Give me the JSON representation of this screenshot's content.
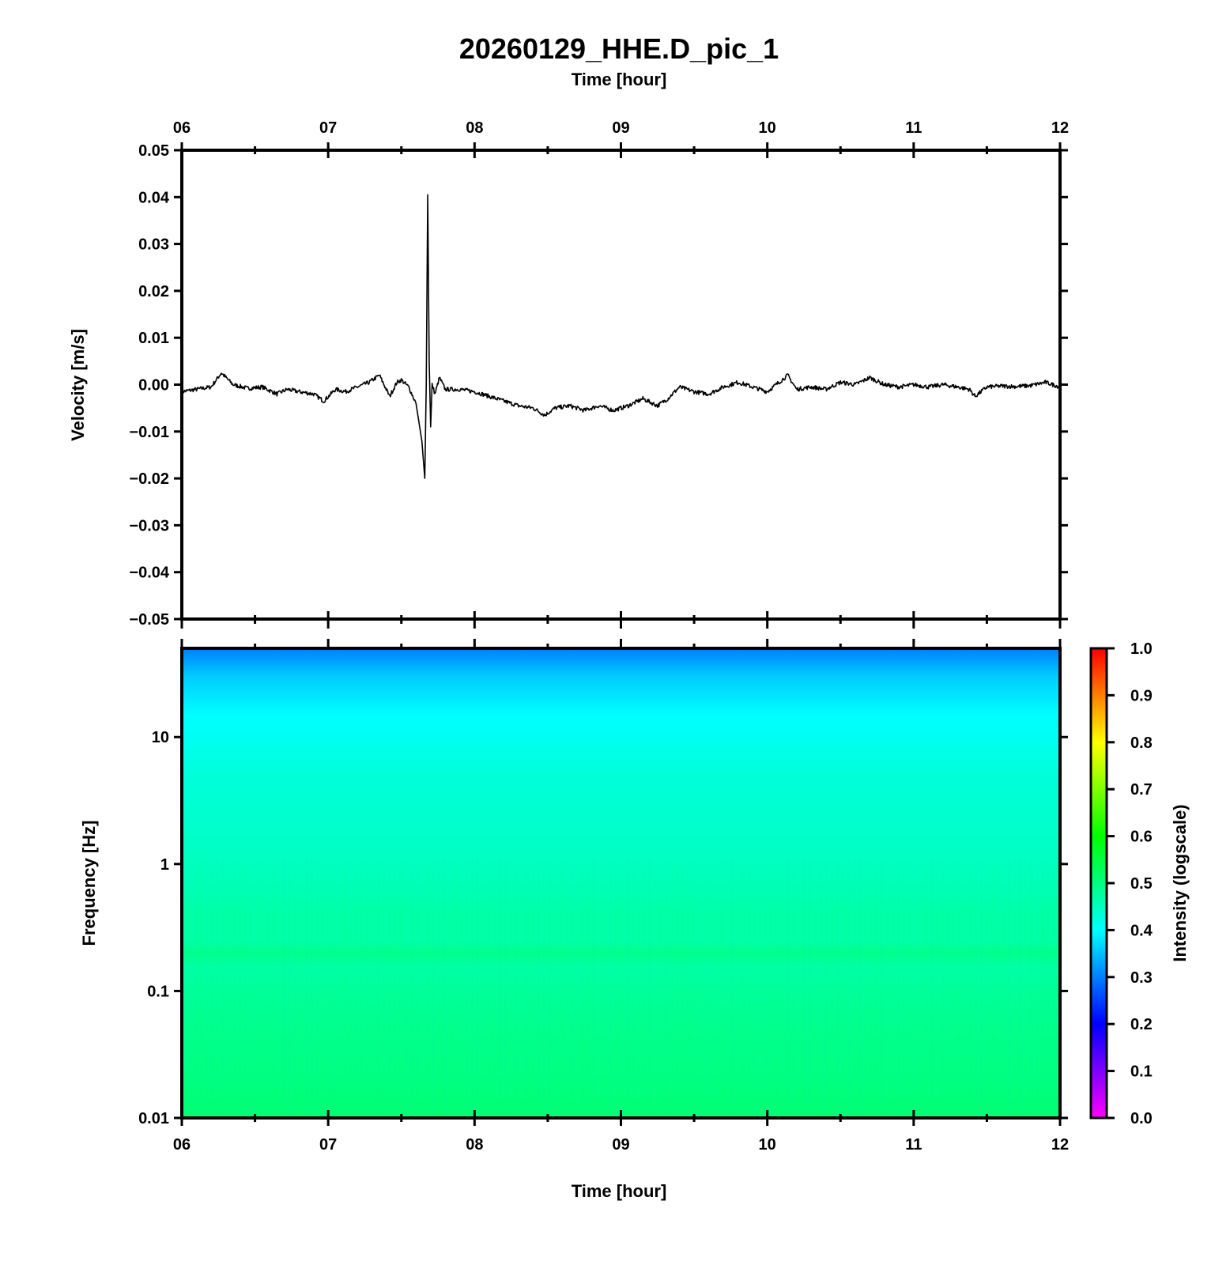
{
  "chart_data": [
    {
      "type": "line",
      "title": "20260129_HHE.D_pic_1",
      "xlabel": "Time [hour]",
      "ylabel": "Velocity [m/s]",
      "xticks": [
        "06",
        "07",
        "08",
        "09",
        "10",
        "11",
        "12"
      ],
      "xlim": [
        6,
        12
      ],
      "ylim": [
        -0.05,
        0.05
      ],
      "yticks": [
        "0.05",
        "0.04",
        "0.03",
        "0.02",
        "0.01",
        "0.00",
        "−0.01",
        "−0.02",
        "−0.03",
        "−0.04",
        "−0.05"
      ],
      "ytick_values": [
        0.05,
        0.04,
        0.03,
        0.02,
        0.01,
        0.0,
        -0.01,
        -0.02,
        -0.03,
        -0.04,
        -0.05
      ],
      "line_color": "#000000",
      "grid": false,
      "x": [
        6.0,
        6.1,
        6.2,
        6.27,
        6.35,
        6.45,
        6.55,
        6.65,
        6.72,
        6.8,
        6.9,
        6.97,
        7.05,
        7.12,
        7.2,
        7.28,
        7.35,
        7.42,
        7.47,
        7.5,
        7.55,
        7.6,
        7.64,
        7.66,
        7.67,
        7.68,
        7.69,
        7.7,
        7.71,
        7.73,
        7.76,
        7.8,
        7.9,
        8.0,
        8.1,
        8.2,
        8.3,
        8.4,
        8.48,
        8.55,
        8.65,
        8.75,
        8.85,
        8.95,
        9.05,
        9.15,
        9.25,
        9.32,
        9.4,
        9.5,
        9.6,
        9.7,
        9.8,
        9.9,
        10.0,
        10.08,
        10.14,
        10.2,
        10.3,
        10.4,
        10.5,
        10.6,
        10.7,
        10.8,
        10.9,
        11.0,
        11.1,
        11.2,
        11.3,
        11.38,
        11.42,
        11.5,
        11.6,
        11.7,
        11.8,
        11.9,
        12.0
      ],
      "y": [
        -0.0015,
        -0.001,
        -0.0005,
        0.0025,
        0.0,
        -0.0008,
        -0.0005,
        -0.002,
        -0.001,
        -0.0015,
        -0.002,
        -0.0035,
        -0.001,
        -0.0015,
        -0.0005,
        0.0005,
        0.002,
        -0.0025,
        0.0005,
        0.001,
        -0.0005,
        -0.004,
        -0.012,
        -0.02,
        0.0,
        0.0405,
        0.005,
        -0.009,
        0.0,
        -0.002,
        0.0015,
        -0.001,
        -0.001,
        -0.0015,
        -0.0025,
        -0.0035,
        -0.0045,
        -0.005,
        -0.0065,
        -0.005,
        -0.0045,
        -0.0055,
        -0.0045,
        -0.0055,
        -0.0045,
        -0.003,
        -0.0045,
        -0.003,
        -0.0005,
        -0.0015,
        -0.002,
        -0.0005,
        0.0005,
        -0.0005,
        -0.0015,
        0.0005,
        0.002,
        -0.001,
        -0.0005,
        -0.001,
        0.0005,
        0.0,
        0.0015,
        0.0,
        -0.0005,
        0.0,
        -0.0005,
        0.0,
        -0.0005,
        -0.001,
        -0.0025,
        -0.0005,
        -0.0003,
        -0.0004,
        -0.0002,
        0.0005,
        -0.0005
      ]
    },
    {
      "type": "heatmap",
      "xlabel": "Time [hour]",
      "ylabel": "Frequency [Hz]",
      "xticks": [
        "06",
        "07",
        "08",
        "09",
        "10",
        "11",
        "12"
      ],
      "xlim": [
        6,
        12
      ],
      "yscale": "log",
      "ylim": [
        0.01,
        50
      ],
      "yticks": [
        "10",
        "1",
        "0.1",
        "0.01"
      ],
      "ytick_values": [
        10,
        1,
        0.1,
        0.01
      ],
      "colorbar": {
        "label": "Intensity (logscale)",
        "range": [
          0.0,
          1.0
        ],
        "ticks": [
          "1.0",
          "0.9",
          "0.8",
          "0.7",
          "0.6",
          "0.5",
          "0.4",
          "0.3",
          "0.2",
          "0.1",
          "0.0"
        ],
        "tick_values": [
          1.0,
          0.9,
          0.8,
          0.7,
          0.6,
          0.5,
          0.4,
          0.3,
          0.2,
          0.1,
          0.0
        ],
        "colors": [
          "#ff00ff",
          "#0000ff",
          "#00ffff",
          "#00ff00",
          "#ffff00",
          "#ff0000"
        ]
      },
      "intensity_profile": {
        "frequency_hz": [
          50,
          30,
          15,
          10,
          5,
          2,
          1,
          0.6,
          0.4,
          0.25,
          0.2,
          0.15,
          0.1,
          0.05,
          0.02,
          0.01
        ],
        "intensity": [
          0.3,
          0.36,
          0.4,
          0.41,
          0.43,
          0.44,
          0.45,
          0.46,
          0.47,
          0.47,
          0.49,
          0.47,
          0.48,
          0.49,
          0.5,
          0.51
        ]
      }
    }
  ]
}
